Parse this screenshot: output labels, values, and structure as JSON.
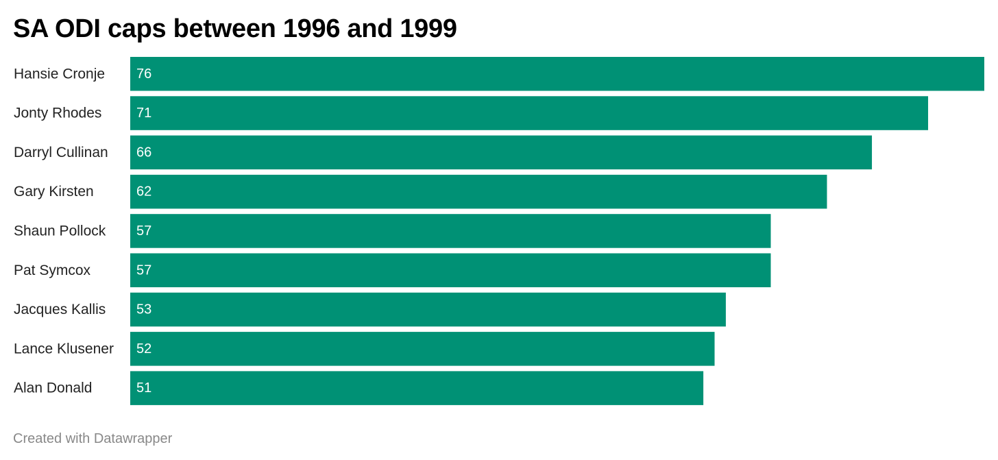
{
  "chart_data": {
    "type": "bar",
    "orientation": "horizontal",
    "title": "SA ODI caps between 1996 and 1999",
    "categories": [
      "Hansie Cronje",
      "Jonty Rhodes",
      "Darryl Cullinan",
      "Gary Kirsten",
      "Shaun Pollock",
      "Pat Symcox",
      "Jacques Kallis",
      "Lance Klusener",
      "Alan Donald"
    ],
    "values": [
      76,
      71,
      66,
      62,
      57,
      57,
      53,
      52,
      51
    ],
    "xlim": [
      0,
      76
    ],
    "grid": false,
    "legend": "none",
    "bar_color": "#009175",
    "value_label_color": "#ffffff"
  },
  "footer": {
    "credit": "Created with Datawrapper"
  }
}
